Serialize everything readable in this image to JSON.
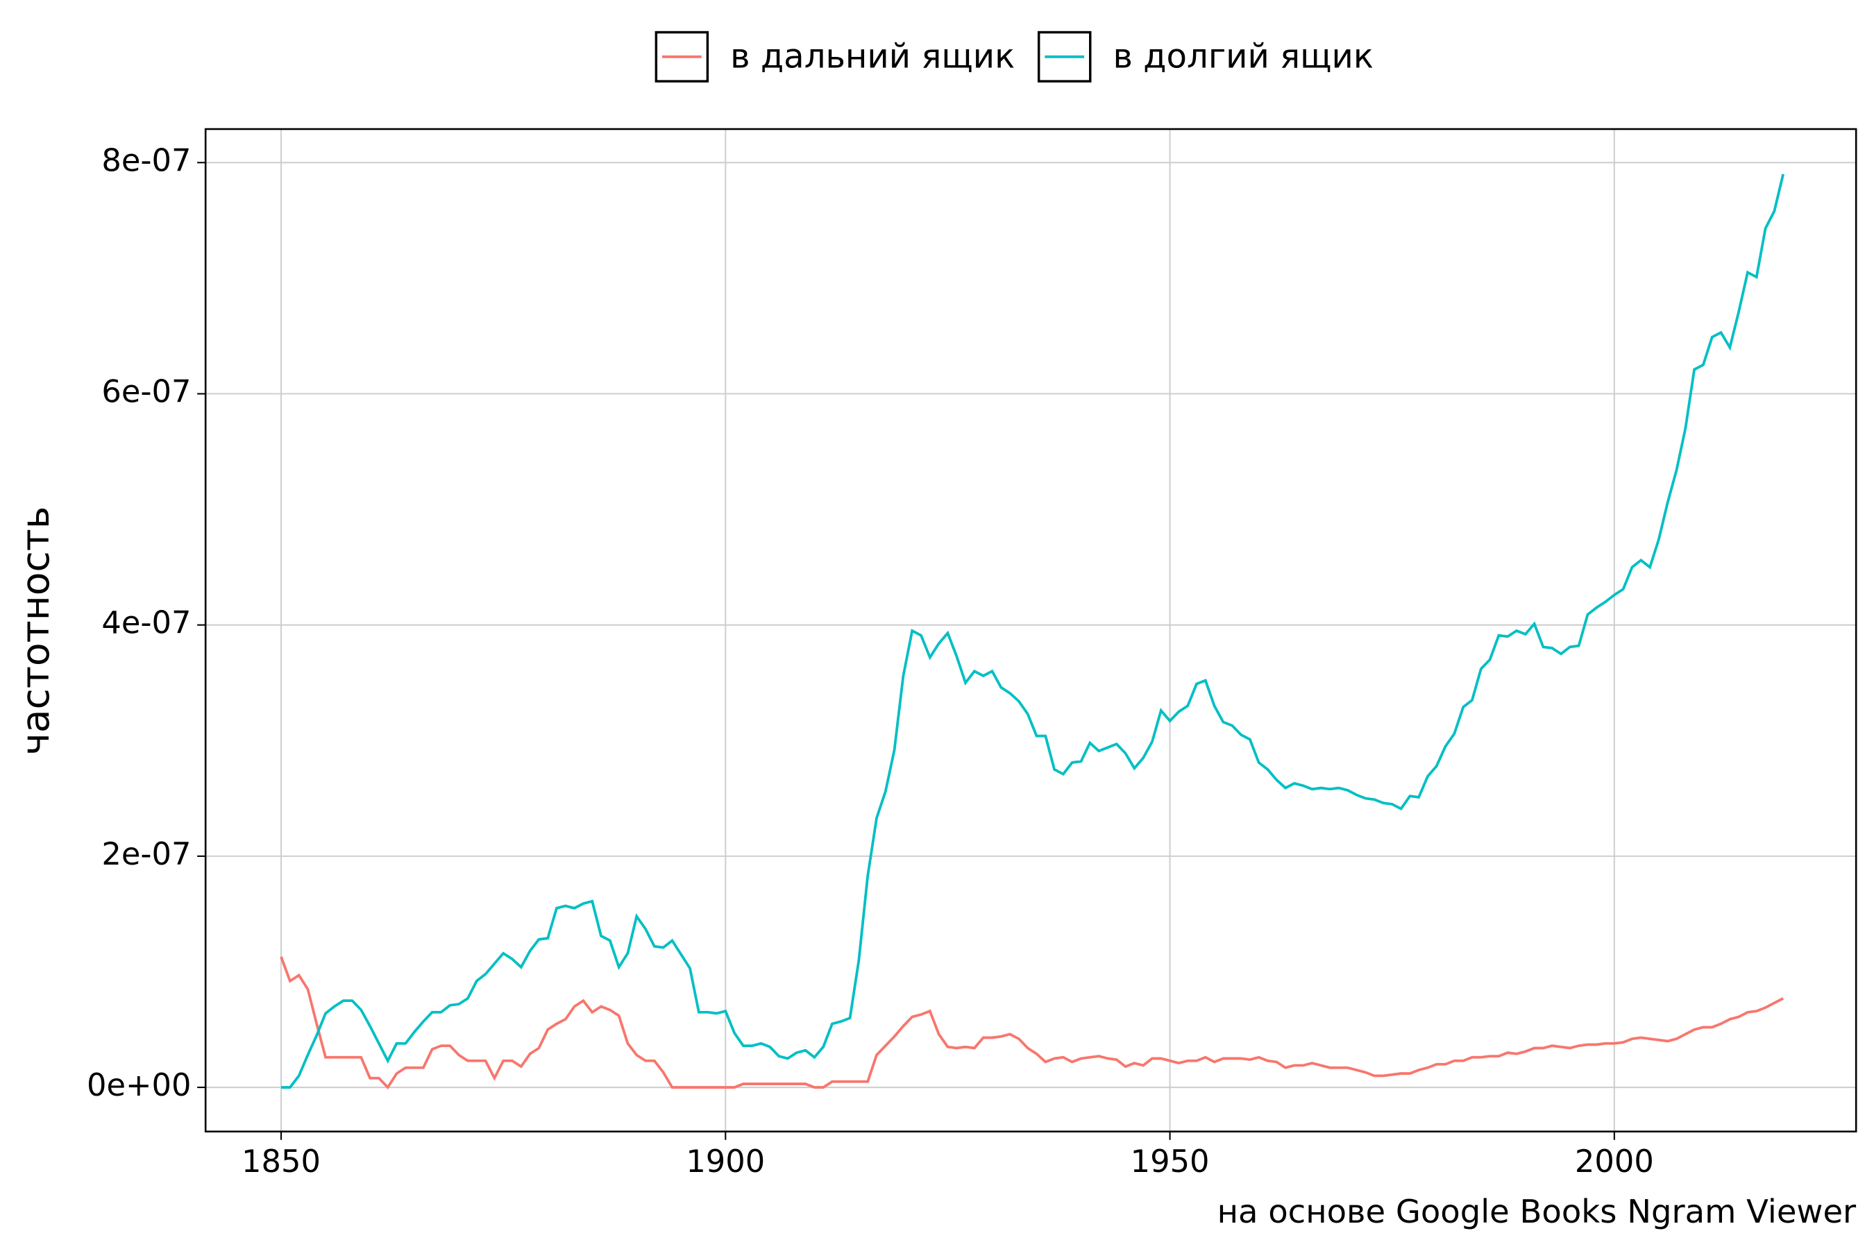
{
  "chart_data": {
    "type": "line",
    "y_label": "частотность",
    "caption": "на основе Google Books Ngram Viewer",
    "legend": "top",
    "grid": true,
    "xlim": [
      1841.5,
      2027.2
    ],
    "ylim": [
      -3.82e-08,
      8.29e-07
    ],
    "xticks": [
      1850,
      1900,
      1950,
      2000
    ],
    "yticks": [
      {
        "value": 0,
        "label": "0e+00"
      },
      {
        "value": 2e-07,
        "label": "2e-07"
      },
      {
        "value": 4e-07,
        "label": "4e-07"
      },
      {
        "value": 6e-07,
        "label": "6e-07"
      },
      {
        "value": 8e-07,
        "label": "8e-07"
      }
    ],
    "x": [
      1850,
      1851,
      1852,
      1853,
      1854,
      1855,
      1856,
      1857,
      1858,
      1859,
      1860,
      1861,
      1862,
      1863,
      1864,
      1865,
      1866,
      1867,
      1868,
      1869,
      1870,
      1871,
      1872,
      1873,
      1874,
      1875,
      1876,
      1877,
      1878,
      1879,
      1880,
      1881,
      1882,
      1883,
      1884,
      1885,
      1886,
      1887,
      1888,
      1889,
      1890,
      1891,
      1892,
      1893,
      1894,
      1895,
      1896,
      1897,
      1898,
      1899,
      1900,
      1901,
      1902,
      1903,
      1904,
      1905,
      1906,
      1907,
      1908,
      1909,
      1910,
      1911,
      1912,
      1913,
      1914,
      1915,
      1916,
      1917,
      1918,
      1919,
      1920,
      1921,
      1922,
      1923,
      1924,
      1925,
      1926,
      1927,
      1928,
      1929,
      1930,
      1931,
      1932,
      1933,
      1934,
      1935,
      1936,
      1937,
      1938,
      1939,
      1940,
      1941,
      1942,
      1943,
      1944,
      1945,
      1946,
      1947,
      1948,
      1949,
      1950,
      1951,
      1952,
      1953,
      1954,
      1955,
      1956,
      1957,
      1958,
      1959,
      1960,
      1961,
      1962,
      1963,
      1964,
      1965,
      1966,
      1967,
      1968,
      1969,
      1970,
      1971,
      1972,
      1973,
      1974,
      1975,
      1976,
      1977,
      1978,
      1979,
      1980,
      1981,
      1982,
      1983,
      1984,
      1985,
      1986,
      1987,
      1988,
      1989,
      1990,
      1991,
      1992,
      1993,
      1994,
      1995,
      1996,
      1997,
      1998,
      1999,
      2000,
      2001,
      2002,
      2003,
      2004,
      2005,
      2006,
      2007,
      2008,
      2009,
      2010,
      2011,
      2012,
      2013,
      2014,
      2015,
      2016,
      2017,
      2018,
      2019
    ],
    "series": [
      {
        "name": "в дальний ящик",
        "color": "#f8766d",
        "values": [
          1.13e-07,
          9.2e-08,
          9.7e-08,
          8.5e-08,
          5.5e-08,
          2.6e-08,
          2.6e-08,
          2.6e-08,
          2.6e-08,
          2.6e-08,
          8e-09,
          8e-09,
          0,
          1.2e-08,
          1.7e-08,
          1.7e-08,
          1.7e-08,
          3.3e-08,
          3.6e-08,
          3.6e-08,
          2.8e-08,
          2.3e-08,
          2.3e-08,
          2.3e-08,
          8e-09,
          2.3e-08,
          2.3e-08,
          1.8e-08,
          2.9e-08,
          3.4e-08,
          5e-08,
          5.5e-08,
          5.9e-08,
          7e-08,
          7.5e-08,
          6.5e-08,
          7e-08,
          6.7e-08,
          6.2e-08,
          3.8e-08,
          2.8e-08,
          2.3e-08,
          2.3e-08,
          1.3e-08,
          0,
          0,
          0,
          0,
          0,
          0,
          0,
          0,
          3e-09,
          3e-09,
          3e-09,
          3e-09,
          3e-09,
          3e-09,
          3e-09,
          3e-09,
          0,
          0,
          5e-09,
          5e-09,
          5e-09,
          5e-09,
          5e-09,
          2.8e-08,
          3.6e-08,
          4.4e-08,
          5.3e-08,
          6.1e-08,
          6.3e-08,
          6.6e-08,
          4.6e-08,
          3.5e-08,
          3.4e-08,
          3.5e-08,
          3.4e-08,
          4.3e-08,
          4.3e-08,
          4.4e-08,
          4.6e-08,
          4.2e-08,
          3.4e-08,
          2.9e-08,
          2.2e-08,
          2.5e-08,
          2.6e-08,
          2.2e-08,
          2.5e-08,
          2.6e-08,
          2.7e-08,
          2.5e-08,
          2.4e-08,
          1.8e-08,
          2.1e-08,
          1.9e-08,
          2.5e-08,
          2.5e-08,
          2.3e-08,
          2.1e-08,
          2.3e-08,
          2.3e-08,
          2.6e-08,
          2.2e-08,
          2.5e-08,
          2.5e-08,
          2.5e-08,
          2.4e-08,
          2.6e-08,
          2.3e-08,
          2.2e-08,
          1.7e-08,
          1.9e-08,
          1.9e-08,
          2.1e-08,
          1.9e-08,
          1.7e-08,
          1.7e-08,
          1.7e-08,
          1.5e-08,
          1.3e-08,
          1e-08,
          1e-08,
          1.1e-08,
          1.2e-08,
          1.2e-08,
          1.5e-08,
          1.7e-08,
          2e-08,
          2e-08,
          2.3e-08,
          2.3e-08,
          2.6e-08,
          2.6e-08,
          2.7e-08,
          2.7e-08,
          3e-08,
          2.9e-08,
          3.1e-08,
          3.4e-08,
          3.4e-08,
          3.6e-08,
          3.5e-08,
          3.4e-08,
          3.6e-08,
          3.7e-08,
          3.7e-08,
          3.8e-08,
          3.8e-08,
          3.9e-08,
          4.2e-08,
          4.3e-08,
          4.2e-08,
          4.1e-08,
          4e-08,
          4.2e-08,
          4.6e-08,
          5e-08,
          5.2e-08,
          5.2e-08,
          5.5e-08,
          5.9e-08,
          6.1e-08,
          6.5e-08,
          6.6e-08,
          6.9e-08,
          7.3e-08,
          7.7e-08
        ]
      },
      {
        "name": "в долгий ящик",
        "color": "#00bfc4",
        "values": [
          0,
          0,
          1e-08,
          2.8e-08,
          4.5e-08,
          6.4e-08,
          7e-08,
          7.5e-08,
          7.5e-08,
          6.7e-08,
          5.3e-08,
          3.8e-08,
          2.3e-08,
          3.8e-08,
          3.8e-08,
          4.8e-08,
          5.7e-08,
          6.5e-08,
          6.5e-08,
          7.1e-08,
          7.2e-08,
          7.7e-08,
          9.2e-08,
          9.8e-08,
          1.07e-07,
          1.16e-07,
          1.11e-07,
          1.04e-07,
          1.18e-07,
          1.28e-07,
          1.29e-07,
          1.55e-07,
          1.57e-07,
          1.55e-07,
          1.59e-07,
          1.61e-07,
          1.31e-07,
          1.27e-07,
          1.04e-07,
          1.16e-07,
          1.48e-07,
          1.37e-07,
          1.22e-07,
          1.21e-07,
          1.27e-07,
          1.15e-07,
          1.03e-07,
          6.5e-08,
          6.5e-08,
          6.4e-08,
          6.6e-08,
          4.7e-08,
          3.6e-08,
          3.6e-08,
          3.8e-08,
          3.5e-08,
          2.7e-08,
          2.5e-08,
          3e-08,
          3.2e-08,
          2.6e-08,
          3.5e-08,
          5.5e-08,
          5.7e-08,
          6e-08,
          1.1e-07,
          1.83e-07,
          2.33e-07,
          2.56e-07,
          2.92e-07,
          3.56e-07,
          3.95e-07,
          3.91e-07,
          3.72e-07,
          3.84e-07,
          3.93e-07,
          3.73e-07,
          3.5e-07,
          3.6e-07,
          3.56e-07,
          3.6e-07,
          3.46e-07,
          3.41e-07,
          3.34e-07,
          3.23e-07,
          3.04e-07,
          3.04e-07,
          2.75e-07,
          2.71e-07,
          2.81e-07,
          2.82e-07,
          2.98e-07,
          2.91e-07,
          2.94e-07,
          2.97e-07,
          2.89e-07,
          2.76e-07,
          2.85e-07,
          2.99e-07,
          3.26e-07,
          3.17e-07,
          3.25e-07,
          3.3e-07,
          3.49e-07,
          3.52e-07,
          3.3e-07,
          3.16e-07,
          3.13e-07,
          3.05e-07,
          3.01e-07,
          2.81e-07,
          2.75e-07,
          2.66e-07,
          2.59e-07,
          2.63e-07,
          2.61e-07,
          2.58e-07,
          2.59e-07,
          2.58e-07,
          2.59e-07,
          2.57e-07,
          2.53e-07,
          2.5e-07,
          2.49e-07,
          2.46e-07,
          2.45e-07,
          2.41e-07,
          2.52e-07,
          2.51e-07,
          2.69e-07,
          2.78e-07,
          2.95e-07,
          3.06e-07,
          3.29e-07,
          3.35e-07,
          3.62e-07,
          3.7e-07,
          3.91e-07,
          3.9e-07,
          3.95e-07,
          3.92e-07,
          4.01e-07,
          3.81e-07,
          3.8e-07,
          3.75e-07,
          3.81e-07,
          3.82e-07,
          4.09e-07,
          4.15e-07,
          4.2e-07,
          4.26e-07,
          4.31e-07,
          4.5e-07,
          4.56e-07,
          4.5e-07,
          4.74e-07,
          5.06e-07,
          5.34e-07,
          5.7e-07,
          6.21e-07,
          6.25e-07,
          6.49e-07,
          6.53e-07,
          6.4e-07,
          6.71e-07,
          7.05e-07,
          7.01e-07,
          7.43e-07,
          7.58e-07,
          7.9e-07
        ]
      }
    ]
  }
}
